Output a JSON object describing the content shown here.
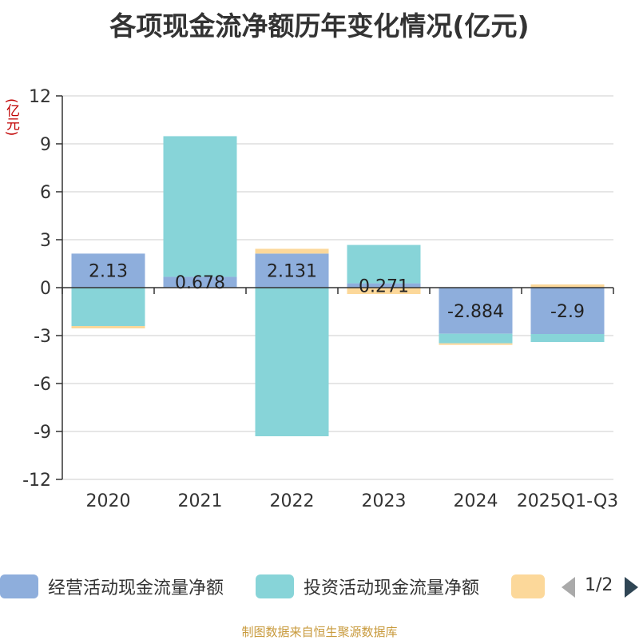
{
  "title": "各项现金流净额历年变化情况(亿元)",
  "unit_label": "(亿元)",
  "source": "制图数据来自恒生聚源数据库",
  "legend": {
    "items": [
      {
        "label": "经营活动现金流量净额",
        "color": "#8eaedc"
      },
      {
        "label": "投资活动现金流量净额",
        "color": "#87d4d8"
      },
      {
        "label": "",
        "color": "#fcd89a"
      }
    ],
    "page_text": "1/2"
  },
  "chart_data": {
    "type": "bar",
    "stacked": true,
    "categories": [
      "2020",
      "2021",
      "2022",
      "2023",
      "2024",
      "2025Q1-Q3"
    ],
    "ylim": [
      -12,
      12
    ],
    "yticks": [
      12,
      9,
      6,
      3,
      0,
      -3,
      -6,
      -9,
      -12
    ],
    "grid": true,
    "legend_position": "bottom",
    "series": [
      {
        "name": "经营活动现金流量净额",
        "color": "#8eaedc",
        "values": [
          2.13,
          0.678,
          2.131,
          0.271,
          -2.884,
          -2.9
        ],
        "labels": [
          "2.13",
          "0.678",
          "2.131",
          "0.271",
          "-2.884",
          "-2.9"
        ]
      },
      {
        "name": "投资活动现金流量净额",
        "color": "#87d4d8",
        "values": [
          -2.4,
          8.8,
          -9.3,
          2.4,
          -0.6,
          -0.5
        ]
      },
      {
        "color": "#fcd89a",
        "values": [
          -0.15,
          0,
          0.3,
          -0.4,
          -0.1,
          0.2
        ]
      }
    ]
  }
}
